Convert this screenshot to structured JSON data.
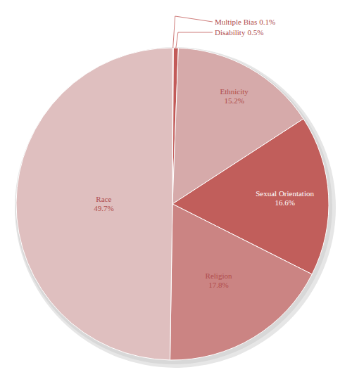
{
  "chart_data": {
    "type": "pie",
    "categories": [
      "Multiple Bias",
      "Disability",
      "Ethnicity",
      "Sexual Orientation",
      "Religion",
      "Race"
    ],
    "values": [
      0.1,
      0.5,
      15.2,
      16.6,
      17.8,
      49.7
    ],
    "value_labels": [
      "0.1%",
      "0.5%",
      "15.2%",
      "16.6%",
      "17.8%",
      "49.7%"
    ],
    "colors": [
      "#c25a58",
      "#c25a58",
      "#d6aaaa",
      "#c15e5b",
      "#cb8483",
      "#dfbfbf"
    ],
    "data_labels": true
  }
}
